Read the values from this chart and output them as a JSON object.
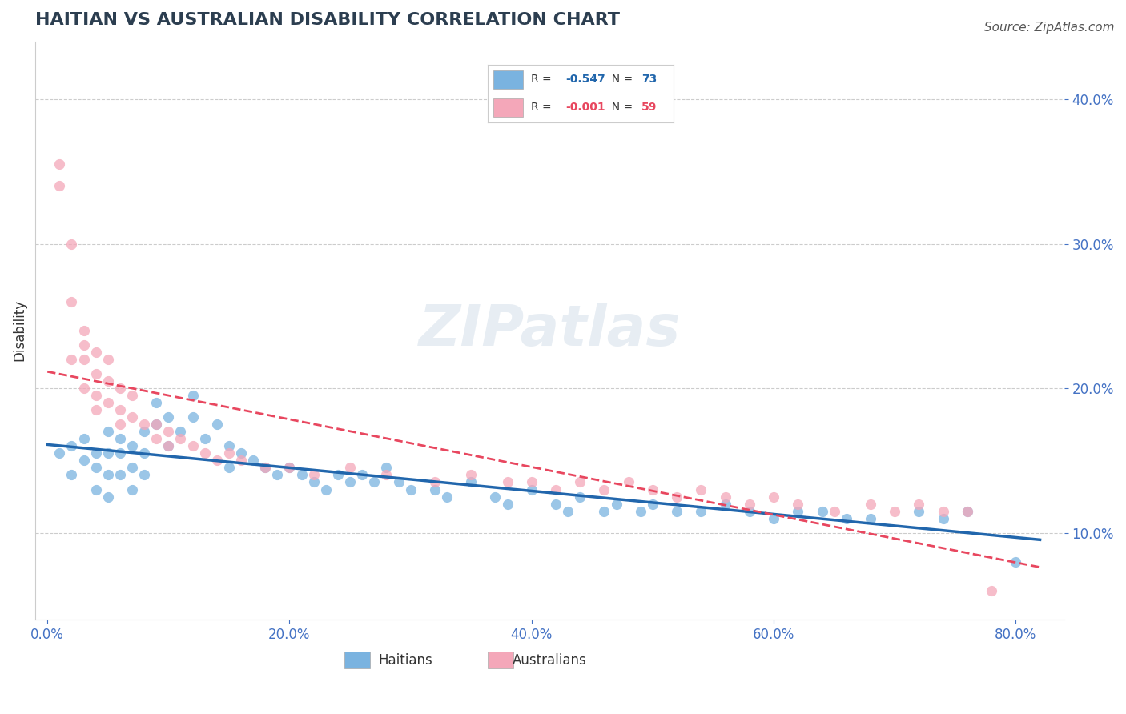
{
  "title": "HAITIAN VS AUSTRALIAN DISABILITY CORRELATION CHART",
  "source": "Source: ZipAtlas.com",
  "ylabel": "Disability",
  "xlabel_ticks": [
    "0.0%",
    "20.0%",
    "40.0%",
    "60.0%",
    "80.0%"
  ],
  "xlabel_vals": [
    0.0,
    0.2,
    0.4,
    0.6,
    0.8
  ],
  "ylabel_ticks": [
    "10.0%",
    "20.0%",
    "30.0%",
    "40.0%"
  ],
  "ylabel_vals": [
    0.1,
    0.2,
    0.3,
    0.4
  ],
  "xlim": [
    -0.01,
    0.84
  ],
  "ylim": [
    0.04,
    0.44
  ],
  "haitians_color": "#7ab3e0",
  "australians_color": "#f4a7b9",
  "haitians_line_color": "#2166ac",
  "australians_line_color": "#e8475f",
  "australians_line_style": "--",
  "R_haitians": -0.547,
  "N_haitians": 73,
  "R_australians": -0.001,
  "N_australians": 59,
  "grid_color": "#cccccc",
  "grid_style": "--",
  "watermark": "ZIPatlas",
  "haitians_x": [
    0.01,
    0.02,
    0.02,
    0.03,
    0.03,
    0.04,
    0.04,
    0.04,
    0.05,
    0.05,
    0.05,
    0.05,
    0.06,
    0.06,
    0.06,
    0.07,
    0.07,
    0.07,
    0.08,
    0.08,
    0.08,
    0.09,
    0.09,
    0.1,
    0.1,
    0.11,
    0.12,
    0.12,
    0.13,
    0.14,
    0.15,
    0.15,
    0.16,
    0.17,
    0.18,
    0.19,
    0.2,
    0.21,
    0.22,
    0.23,
    0.24,
    0.25,
    0.26,
    0.27,
    0.28,
    0.29,
    0.3,
    0.32,
    0.33,
    0.35,
    0.37,
    0.38,
    0.4,
    0.42,
    0.43,
    0.44,
    0.46,
    0.47,
    0.49,
    0.5,
    0.52,
    0.54,
    0.56,
    0.58,
    0.6,
    0.62,
    0.64,
    0.66,
    0.68,
    0.72,
    0.74,
    0.76,
    0.8
  ],
  "haitians_y": [
    0.155,
    0.16,
    0.14,
    0.15,
    0.165,
    0.155,
    0.145,
    0.13,
    0.17,
    0.155,
    0.14,
    0.125,
    0.165,
    0.155,
    0.14,
    0.16,
    0.145,
    0.13,
    0.17,
    0.155,
    0.14,
    0.19,
    0.175,
    0.18,
    0.16,
    0.17,
    0.195,
    0.18,
    0.165,
    0.175,
    0.16,
    0.145,
    0.155,
    0.15,
    0.145,
    0.14,
    0.145,
    0.14,
    0.135,
    0.13,
    0.14,
    0.135,
    0.14,
    0.135,
    0.145,
    0.135,
    0.13,
    0.13,
    0.125,
    0.135,
    0.125,
    0.12,
    0.13,
    0.12,
    0.115,
    0.125,
    0.115,
    0.12,
    0.115,
    0.12,
    0.115,
    0.115,
    0.12,
    0.115,
    0.11,
    0.115,
    0.115,
    0.11,
    0.11,
    0.115,
    0.11,
    0.115,
    0.08
  ],
  "australians_x": [
    0.01,
    0.01,
    0.02,
    0.02,
    0.02,
    0.03,
    0.03,
    0.03,
    0.03,
    0.04,
    0.04,
    0.04,
    0.04,
    0.05,
    0.05,
    0.05,
    0.06,
    0.06,
    0.06,
    0.07,
    0.07,
    0.08,
    0.09,
    0.09,
    0.1,
    0.1,
    0.11,
    0.12,
    0.13,
    0.14,
    0.15,
    0.16,
    0.18,
    0.2,
    0.22,
    0.25,
    0.28,
    0.32,
    0.35,
    0.38,
    0.4,
    0.42,
    0.44,
    0.46,
    0.48,
    0.5,
    0.52,
    0.54,
    0.56,
    0.58,
    0.6,
    0.62,
    0.65,
    0.68,
    0.7,
    0.72,
    0.74,
    0.76,
    0.78
  ],
  "australians_y": [
    0.355,
    0.34,
    0.26,
    0.3,
    0.22,
    0.24,
    0.22,
    0.2,
    0.23,
    0.225,
    0.21,
    0.195,
    0.185,
    0.22,
    0.205,
    0.19,
    0.2,
    0.185,
    0.175,
    0.195,
    0.18,
    0.175,
    0.165,
    0.175,
    0.16,
    0.17,
    0.165,
    0.16,
    0.155,
    0.15,
    0.155,
    0.15,
    0.145,
    0.145,
    0.14,
    0.145,
    0.14,
    0.135,
    0.14,
    0.135,
    0.135,
    0.13,
    0.135,
    0.13,
    0.135,
    0.13,
    0.125,
    0.13,
    0.125,
    0.12,
    0.125,
    0.12,
    0.115,
    0.12,
    0.115,
    0.12,
    0.115,
    0.115,
    0.06
  ]
}
